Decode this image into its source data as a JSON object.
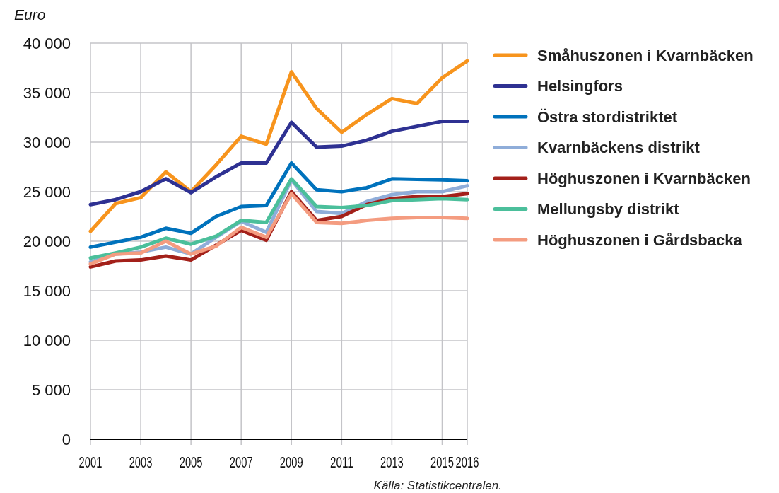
{
  "chart_data": {
    "type": "line",
    "ylabel": "Euro",
    "annotations": [
      "Källa: Statistikcentralen."
    ],
    "x": [
      2001,
      2002,
      2003,
      2004,
      2005,
      2006,
      2007,
      2008,
      2009,
      2010,
      2011,
      2012,
      2013,
      2014,
      2015,
      2016
    ],
    "xlim": [
      2001,
      2016
    ],
    "xticks": [
      2001,
      2003,
      2005,
      2007,
      2009,
      2011,
      2013,
      2015,
      2016
    ],
    "ylim": [
      0,
      40000
    ],
    "yticks": [
      {
        "value": 0,
        "label": "0"
      },
      {
        "value": 5000,
        "label": "5 000"
      },
      {
        "value": 10000,
        "label": "10 000"
      },
      {
        "value": 15000,
        "label": "15 000"
      },
      {
        "value": 20000,
        "label": "20 000"
      },
      {
        "value": 25000,
        "label": "25 000"
      },
      {
        "value": 30000,
        "label": "30 000"
      },
      {
        "value": 35000,
        "label": "35 000"
      },
      {
        "value": 40000,
        "label": "40 000"
      }
    ],
    "grid": true,
    "legend": "right",
    "marker": "none",
    "line_style": "solid",
    "series": [
      {
        "name": "Småhuszonen i Kvarnbäcken",
        "color": "#f7941d",
        "values": [
          21000,
          23800,
          24400,
          27000,
          25000,
          27700,
          30600,
          29800,
          37100,
          33400,
          31000,
          32800,
          34400,
          33900,
          36500,
          38200
        ]
      },
      {
        "name": "Helsingfors",
        "color": "#2e3192",
        "values": [
          23700,
          24200,
          25000,
          26300,
          24900,
          26500,
          27900,
          27900,
          32000,
          29500,
          29600,
          30200,
          31100,
          31600,
          32100,
          32100
        ]
      },
      {
        "name": "Östra stordistriktet",
        "color": "#0072bc",
        "values": [
          19400,
          19900,
          20400,
          21300,
          20800,
          22500,
          23500,
          23600,
          27900,
          25200,
          25000,
          25400,
          26300,
          26250,
          26200,
          26100
        ]
      },
      {
        "name": "Kvarnbäckens distrikt",
        "color": "#8fadd9",
        "values": [
          17900,
          18700,
          18900,
          19400,
          18700,
          20400,
          22000,
          20900,
          26200,
          23000,
          22800,
          24000,
          24700,
          25000,
          25000,
          25600
        ]
      },
      {
        "name": "Höghuszonen i Kvarnbäcken",
        "color": "#a3201a",
        "values": [
          17400,
          18000,
          18100,
          18500,
          18100,
          19600,
          21100,
          20100,
          25000,
          22100,
          22500,
          23700,
          24300,
          24500,
          24500,
          24800
        ]
      },
      {
        "name": "Mellungsby distrikt",
        "color": "#4bbf9b",
        "values": [
          18300,
          18800,
          19400,
          20300,
          19700,
          20500,
          22100,
          21900,
          26300,
          23500,
          23400,
          23600,
          24100,
          24200,
          24300,
          24200
        ]
      },
      {
        "name": "Höghuszonen i Gårdsbacka",
        "color": "#f49c80",
        "values": [
          17700,
          18700,
          18800,
          20000,
          18700,
          19500,
          21400,
          20400,
          24800,
          21900,
          21800,
          22100,
          22300,
          22400,
          22400,
          22300
        ]
      }
    ]
  }
}
